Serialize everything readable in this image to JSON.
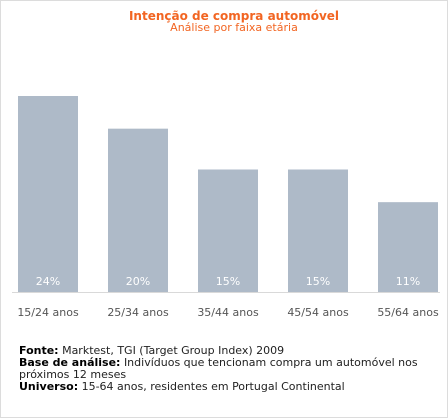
{
  "colors": {
    "accent": "#f26522",
    "bar": "#aebac8",
    "value_label": "#ffffff",
    "category_label": "#555555",
    "axis": "#d9d9d9"
  },
  "chart_data": {
    "type": "bar",
    "title": "Intenção de compra automóvel",
    "subtitle": "Análise por faixa etária",
    "xlabel": "",
    "ylabel": "",
    "categories": [
      "15/24 anos",
      "25/34 anos",
      "35/44 anos",
      "45/54 anos",
      "55/64 anos"
    ],
    "values": [
      24,
      20,
      15,
      15,
      11
    ],
    "value_labels": [
      "24%",
      "20%",
      "15%",
      "15%",
      "11%"
    ],
    "unit": "%",
    "ylim": [
      0,
      24
    ],
    "grid": false,
    "legend": "none"
  },
  "footer": {
    "fonte_label": "Fonte:",
    "fonte_text": "Marktest, TGI (Target Group Index) 2009",
    "base_label": "Base de análise:",
    "base_text": "Indivíduos que tencionam compra um automóvel nos",
    "base_text_cont": "próximos 12 meses",
    "universo_label": "Universo:",
    "universo_text": "15-64 anos, residentes em Portugal Continental"
  }
}
